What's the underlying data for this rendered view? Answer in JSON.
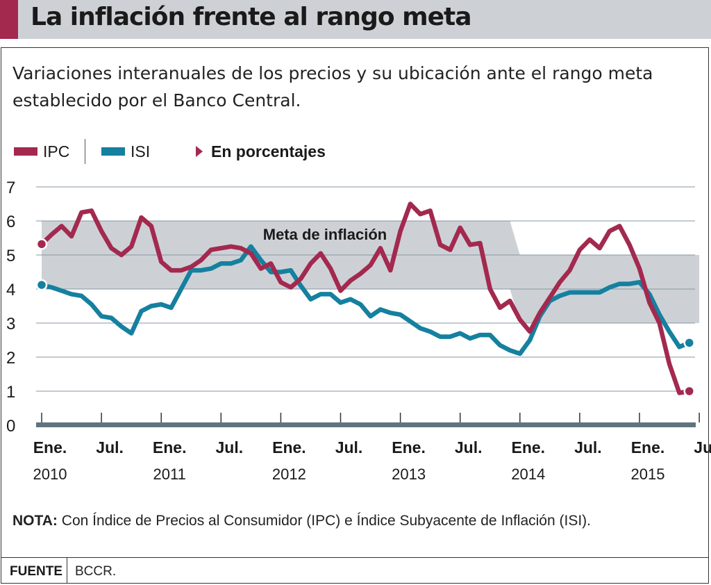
{
  "title": "La inflación frente al rango meta",
  "subtitle": "Variaciones interanuales de los precios y su ubicación ante el rango meta establecido por el Banco Central.",
  "legend": {
    "ipc": "IPC",
    "isi": "ISI",
    "units": "En porcentajes"
  },
  "note": {
    "label": "NOTA:",
    "text": " Con Índice de Precios al Consumidor (IPC) e Índice Subyacente de Inflación (ISI)."
  },
  "footer": {
    "label": "FUENTE",
    "source": "BCCR."
  },
  "colors": {
    "ipc": "#a3294f",
    "isi": "#15809f",
    "band": "#cdd1d6",
    "axis": "#5f7480",
    "grid": "#8895a2"
  },
  "chart_data": {
    "type": "line",
    "title": "La inflación frente al rango meta",
    "ylim": [
      0,
      7
    ],
    "yticks": [
      0,
      1,
      2,
      3,
      4,
      5,
      6,
      7
    ],
    "grid": true,
    "legend_position": "top-left",
    "band_label": "Meta de inflación",
    "x_start": "2010-01",
    "month_labels": [
      {
        "month": 0,
        "top": "Ene.",
        "bottom": "2010"
      },
      {
        "month": 6,
        "top": "Jul.",
        "bottom": ""
      },
      {
        "month": 12,
        "top": "Ene.",
        "bottom": "2011"
      },
      {
        "month": 18,
        "top": "Jul.",
        "bottom": ""
      },
      {
        "month": 24,
        "top": "Ene.",
        "bottom": "2012"
      },
      {
        "month": 30,
        "top": "Jul.",
        "bottom": ""
      },
      {
        "month": 36,
        "top": "Ene.",
        "bottom": "2013"
      },
      {
        "month": 42,
        "top": "Jul.",
        "bottom": ""
      },
      {
        "month": 48,
        "top": "Ene.",
        "bottom": "2014"
      },
      {
        "month": 54,
        "top": "Jul.",
        "bottom": ""
      },
      {
        "month": 60,
        "top": "Ene.",
        "bottom": "2015"
      },
      {
        "month": 66,
        "top": "Jul.",
        "bottom": ""
      }
    ],
    "band": {
      "months": [
        0,
        47,
        48,
        66
      ],
      "upper": [
        6,
        6,
        5,
        5
      ],
      "lower": [
        4,
        4,
        3,
        3
      ]
    },
    "series": [
      {
        "name": "IPC",
        "color": "#a3294f",
        "values": [
          5.32,
          5.6,
          5.85,
          5.55,
          6.25,
          6.3,
          5.7,
          5.2,
          5.0,
          5.25,
          6.1,
          5.85,
          4.8,
          4.55,
          4.55,
          4.65,
          4.85,
          5.15,
          5.2,
          5.25,
          5.2,
          5.05,
          4.6,
          4.75,
          4.2,
          4.05,
          4.3,
          4.75,
          5.05,
          4.6,
          3.95,
          4.25,
          4.45,
          4.7,
          5.2,
          4.55,
          5.7,
          6.5,
          6.2,
          6.3,
          5.3,
          5.15,
          5.8,
          5.3,
          5.35,
          4.0,
          3.45,
          3.65,
          3.1,
          2.75,
          3.3,
          3.75,
          4.2,
          4.55,
          5.15,
          5.45,
          5.2,
          5.7,
          5.85,
          5.3,
          4.6,
          3.6,
          3.0,
          1.8,
          0.95,
          1.0
        ]
      },
      {
        "name": "ISI",
        "color": "#15809f",
        "values": [
          4.12,
          4.05,
          3.95,
          3.85,
          3.8,
          3.55,
          3.2,
          3.15,
          2.9,
          2.7,
          3.35,
          3.5,
          3.55,
          3.45,
          4.0,
          4.55,
          4.55,
          4.6,
          4.75,
          4.75,
          4.85,
          5.25,
          4.85,
          4.5,
          4.5,
          4.55,
          4.1,
          3.7,
          3.85,
          3.85,
          3.6,
          3.7,
          3.55,
          3.2,
          3.4,
          3.3,
          3.25,
          3.05,
          2.85,
          2.75,
          2.6,
          2.6,
          2.7,
          2.55,
          2.65,
          2.65,
          2.35,
          2.2,
          2.1,
          2.5,
          3.2,
          3.65,
          3.8,
          3.9,
          3.9,
          3.9,
          3.9,
          4.05,
          4.15,
          4.15,
          4.2,
          3.85,
          3.25,
          2.75,
          2.3,
          2.42
        ]
      }
    ]
  }
}
